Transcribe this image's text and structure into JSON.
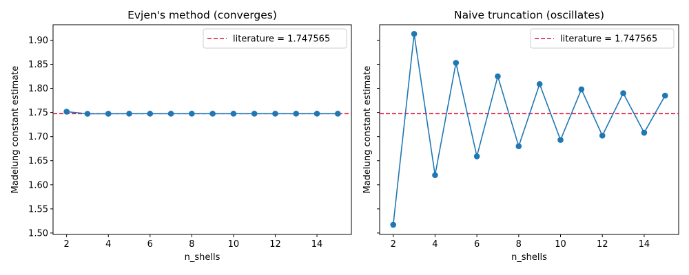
{
  "chart_data": [
    {
      "type": "line",
      "title": "Evjen's method (converges)",
      "xlabel": "n_shells",
      "ylabel": "Madelung constant estimate",
      "x": [
        2,
        3,
        4,
        5,
        6,
        7,
        8,
        9,
        10,
        11,
        12,
        13,
        14,
        15
      ],
      "series": [
        {
          "values": [
            1.7517,
            1.7473,
            1.7474,
            1.7475,
            1.7475,
            1.7475,
            1.7475,
            1.7475,
            1.7475,
            1.7475,
            1.7475,
            1.7475,
            1.7475,
            1.7475
          ],
          "color": "#1f77b4"
        }
      ],
      "reference_line": {
        "label": "literature = 1.747565",
        "value": 1.747565,
        "color": "#dc143c",
        "style": "dashed"
      },
      "xlim": [
        1.35,
        15.65
      ],
      "ylim": [
        1.497,
        1.932
      ],
      "xticks": [
        "2",
        "4",
        "6",
        "8",
        "10",
        "12",
        "14"
      ],
      "yticks": [
        "1.50",
        "1.55",
        "1.60",
        "1.65",
        "1.70",
        "1.75",
        "1.80",
        "1.85",
        "1.90"
      ],
      "show_ytick_labels": true,
      "grid": false,
      "legend": "upper right"
    },
    {
      "type": "line",
      "title": "Naive truncation (oscillates)",
      "xlabel": "n_shells",
      "ylabel": "Madelung constant estimate",
      "x": [
        2,
        3,
        4,
        5,
        6,
        7,
        8,
        9,
        10,
        11,
        12,
        13,
        14,
        15
      ],
      "series": [
        {
          "values": [
            1.517,
            1.913,
            1.62,
            1.853,
            1.659,
            1.825,
            1.68,
            1.809,
            1.693,
            1.798,
            1.702,
            1.79,
            1.708,
            1.785
          ],
          "color": "#1f77b4"
        }
      ],
      "reference_line": {
        "label": "literature = 1.747565",
        "value": 1.747565,
        "color": "#dc143c",
        "style": "dashed"
      },
      "xlim": [
        1.35,
        15.65
      ],
      "ylim": [
        1.497,
        1.932
      ],
      "xticks": [
        "2",
        "4",
        "6",
        "8",
        "10",
        "12",
        "14"
      ],
      "yticks": [
        "1.50",
        "1.55",
        "1.60",
        "1.65",
        "1.70",
        "1.75",
        "1.80",
        "1.85",
        "1.90"
      ],
      "show_ytick_labels": false,
      "grid": false,
      "legend": "upper right"
    }
  ]
}
